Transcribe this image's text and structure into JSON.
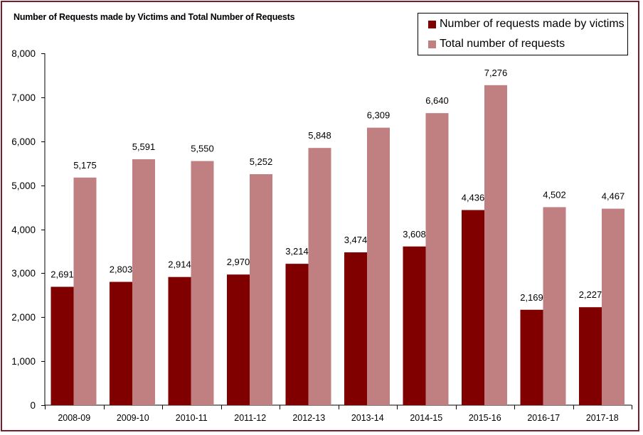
{
  "chart_data": {
    "type": "bar",
    "title": "Number of Requests made by Victims and Total Number of Requests",
    "xlabel": "",
    "ylabel": "",
    "ylim": [
      0,
      8000
    ],
    "yticks": [
      0,
      1000,
      2000,
      3000,
      4000,
      5000,
      6000,
      7000,
      8000
    ],
    "ytick_labels": [
      "0",
      "1,000",
      "2,000",
      "3,000",
      "4,000",
      "5,000",
      "6,000",
      "7,000",
      "8,000"
    ],
    "categories": [
      "2008-09",
      "2009-10",
      "2010-11",
      "2011-12",
      "2012-13",
      "2013-14",
      "2014-15",
      "2015-16",
      "2016-17",
      "2017-18"
    ],
    "series": [
      {
        "name": "Number of requests made by victims",
        "color": "#800000",
        "values": [
          2691,
          2803,
          2914,
          2970,
          3214,
          3474,
          3608,
          4436,
          2169,
          2227
        ],
        "labels": [
          "2,691",
          "2,803",
          "2,914",
          "2,970",
          "3,214",
          "3,474",
          "3,608",
          "4,436",
          "2,169",
          "2,227"
        ]
      },
      {
        "name": "Total number of requests",
        "color": "#c07f80",
        "values": [
          5175,
          5591,
          5550,
          5252,
          5848,
          6309,
          6640,
          7276,
          4502,
          4467
        ],
        "labels": [
          "5,175",
          "5,591",
          "5,550",
          "5,252",
          "5,848",
          "6,309",
          "6,640",
          "7,276",
          "4,502",
          "4,467"
        ]
      }
    ],
    "grid": false,
    "legend_position": "top-right"
  }
}
